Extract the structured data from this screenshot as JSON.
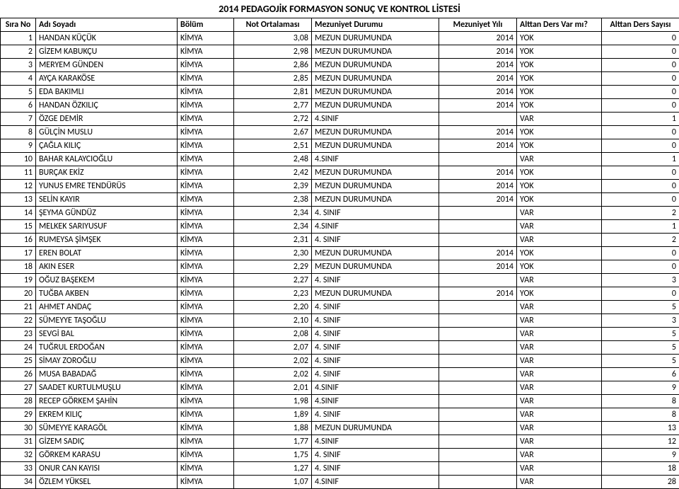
{
  "title": "2014 PEDAGOJİK FORMASYON SONUÇ VE KONTROL LİSTESİ",
  "columns": [
    "Sıra No",
    "Adı Soyadı",
    "Bölüm",
    "Not Ortalaması",
    "Mezuniyet Durumu",
    "Mezuniyet Yılı",
    "Alttan Ders Var mı?",
    "Alttan Ders Sayısı"
  ],
  "rows": [
    {
      "no": "1",
      "ad": "HANDAN KÜÇÜK",
      "bolum": "KİMYA",
      "not": "3,08",
      "mdurum": "MEZUN DURUMUNDA",
      "myil": "2014",
      "avm": "YOK",
      "asay": "0"
    },
    {
      "no": "2",
      "ad": "GİZEM KABUKÇU",
      "bolum": "KİMYA",
      "not": "2,98",
      "mdurum": "MEZUN DURUMUNDA",
      "myil": "2014",
      "avm": "YOK",
      "asay": "0"
    },
    {
      "no": "3",
      "ad": "MERYEM GÜNDEN",
      "bolum": "KİMYA",
      "not": "2,86",
      "mdurum": "MEZUN DURUMUNDA",
      "myil": "2014",
      "avm": "YOK",
      "asay": "0"
    },
    {
      "no": "4",
      "ad": "AYÇA KARAKÖSE",
      "bolum": "KİMYA",
      "not": "2,85",
      "mdurum": "MEZUN DURUMUNDA",
      "myil": "2014",
      "avm": "YOK",
      "asay": "0"
    },
    {
      "no": "5",
      "ad": "EDA BAKIMLI",
      "bolum": "KİMYA",
      "not": "2,81",
      "mdurum": "MEZUN DURUMUNDA",
      "myil": "2014",
      "avm": "YOK",
      "asay": "0"
    },
    {
      "no": "6",
      "ad": "HANDAN ÖZKILIÇ",
      "bolum": "KİMYA",
      "not": "2,77",
      "mdurum": "MEZUN DURUMUNDA",
      "myil": "2014",
      "avm": "YOK",
      "asay": "0"
    },
    {
      "no": "7",
      "ad": "ÖZGE DEMİR",
      "bolum": "KİMYA",
      "not": "2,72",
      "mdurum": "4.SINIF",
      "myil": "",
      "avm": "VAR",
      "asay": "1"
    },
    {
      "no": "8",
      "ad": "GÜLÇİN MUSLU",
      "bolum": "KİMYA",
      "not": "2,67",
      "mdurum": "MEZUN DURUMUNDA",
      "myil": "2014",
      "avm": "YOK",
      "asay": "0"
    },
    {
      "no": "9",
      "ad": "ÇAĞLA KILIÇ",
      "bolum": "KİMYA",
      "not": "2,51",
      "mdurum": "MEZUN DURUMUNDA",
      "myil": "2014",
      "avm": "YOK",
      "asay": "0"
    },
    {
      "no": "10",
      "ad": "BAHAR KALAYCIOĞLU",
      "bolum": "KİMYA",
      "not": "2,48",
      "mdurum": "4.SINIF",
      "myil": "",
      "avm": "VAR",
      "asay": "1"
    },
    {
      "no": "11",
      "ad": "BURÇAK EKİZ",
      "bolum": "KİMYA",
      "not": "2,42",
      "mdurum": "MEZUN DURUMUNDA",
      "myil": "2014",
      "avm": "YOK",
      "asay": "0"
    },
    {
      "no": "12",
      "ad": "YUNUS EMRE TENDÜRÜS",
      "bolum": "KİMYA",
      "not": "2,39",
      "mdurum": "MEZUN DURUMUNDA",
      "myil": "2014",
      "avm": "YOK",
      "asay": "0"
    },
    {
      "no": "13",
      "ad": "SELİN KAYIR",
      "bolum": "KİMYA",
      "not": "2,38",
      "mdurum": "MEZUN DURUMUNDA",
      "myil": "2014",
      "avm": "YOK",
      "asay": "0"
    },
    {
      "no": "14",
      "ad": "ŞEYMA GÜNDÜZ",
      "bolum": "KİMYA",
      "not": "2,34",
      "mdurum": "4. SINIF",
      "myil": "",
      "avm": "VAR",
      "asay": "2"
    },
    {
      "no": "15",
      "ad": "MELKEK SARIYUSUF",
      "bolum": "KİMYA",
      "not": "2,34",
      "mdurum": "4.SINIF",
      "myil": "",
      "avm": "VAR",
      "asay": "1"
    },
    {
      "no": "16",
      "ad": "RUMEYSA ŞİMŞEK",
      "bolum": "KİMYA",
      "not": "2,31",
      "mdurum": "4. SINIF",
      "myil": "",
      "avm": "VAR",
      "asay": "2"
    },
    {
      "no": "17",
      "ad": "EREN BOLAT",
      "bolum": "KİMYA",
      "not": "2,30",
      "mdurum": "MEZUN DURUMUNDA",
      "myil": "2014",
      "avm": "YOK",
      "asay": "0"
    },
    {
      "no": "18",
      "ad": "AKIN ESER",
      "bolum": "KİMYA",
      "not": "2,29",
      "mdurum": "MEZUN DURUMUNDA",
      "myil": "2014",
      "avm": "YOK",
      "asay": "0"
    },
    {
      "no": "19",
      "ad": "OĞUZ BAŞEKEM",
      "bolum": "KİMYA",
      "not": "2,27",
      "mdurum": "4. SINIF",
      "myil": "",
      "avm": "VAR",
      "asay": "3"
    },
    {
      "no": "20",
      "ad": "TUĞBA AKBEN",
      "bolum": "KİMYA",
      "not": "2,23",
      "mdurum": "MEZUN DURUMUNDA",
      "myil": "2014",
      "avm": "YOK",
      "asay": "0"
    },
    {
      "no": "21",
      "ad": "AHMET ANDAÇ",
      "bolum": "KİMYA",
      "not": "2,20",
      "mdurum": "4. SINIF",
      "myil": "",
      "avm": "VAR",
      "asay": "5"
    },
    {
      "no": "22",
      "ad": "SÜMEYYE TAŞOĞLU",
      "bolum": "KİMYA",
      "not": "2,10",
      "mdurum": "4. SINIF",
      "myil": "",
      "avm": "VAR",
      "asay": "3"
    },
    {
      "no": "23",
      "ad": "SEVGİ BAL",
      "bolum": "KİMYA",
      "not": "2,08",
      "mdurum": "4. SINIF",
      "myil": "",
      "avm": "VAR",
      "asay": "5"
    },
    {
      "no": "24",
      "ad": "TUĞRUL ERDOĞAN",
      "bolum": "KİMYA",
      "not": "2,07",
      "mdurum": "4. SINIF",
      "myil": "",
      "avm": "VAR",
      "asay": "5"
    },
    {
      "no": "25",
      "ad": "SİMAY ZOROĞLU",
      "bolum": "KİMYA",
      "not": "2,02",
      "mdurum": "4. SINIF",
      "myil": "",
      "avm": "VAR",
      "asay": "5"
    },
    {
      "no": "26",
      "ad": "MUSA BABADAĞ",
      "bolum": "KİMYA",
      "not": "2,02",
      "mdurum": "4. SINIF",
      "myil": "",
      "avm": "VAR",
      "asay": "6"
    },
    {
      "no": "27",
      "ad": "SAADET KURTULMUŞLU",
      "bolum": "KİMYA",
      "not": "2,01",
      "mdurum": "4.SINIF",
      "myil": "",
      "avm": "VAR",
      "asay": "9"
    },
    {
      "no": "28",
      "ad": "RECEP GÖRKEM ŞAHİN",
      "bolum": "KİMYA",
      "not": "1,98",
      "mdurum": "4.SINIF",
      "myil": "",
      "avm": "VAR",
      "asay": "8"
    },
    {
      "no": "29",
      "ad": "EKREM KILIÇ",
      "bolum": "KİMYA",
      "not": "1,89",
      "mdurum": "4. SINIF",
      "myil": "",
      "avm": "VAR",
      "asay": "8"
    },
    {
      "no": "30",
      "ad": "SÜMEYYE KARAGÖL",
      "bolum": "KİMYA",
      "not": "1,88",
      "mdurum": "MEZUN DURUMUNDA",
      "myil": "",
      "avm": "VAR",
      "asay": "13"
    },
    {
      "no": "31",
      "ad": "GİZEM SADIÇ",
      "bolum": "KİMYA",
      "not": "1,77",
      "mdurum": "4.SINIF",
      "myil": "",
      "avm": "VAR",
      "asay": "12"
    },
    {
      "no": "32",
      "ad": "GÖRKEM KARASU",
      "bolum": "KİMYA",
      "not": "1,75",
      "mdurum": "4. SINIF",
      "myil": "",
      "avm": "VAR",
      "asay": "9"
    },
    {
      "no": "33",
      "ad": "ONUR CAN KAYISI",
      "bolum": "KİMYA",
      "not": "1,27",
      "mdurum": "4. SINIF",
      "myil": "",
      "avm": "VAR",
      "asay": "18"
    },
    {
      "no": "34",
      "ad": "ÖZLEM YÜKSEL",
      "bolum": "KİMYA",
      "not": "1,07",
      "mdurum": "4.SINIF",
      "myil": "",
      "avm": "VAR",
      "asay": "28"
    }
  ]
}
